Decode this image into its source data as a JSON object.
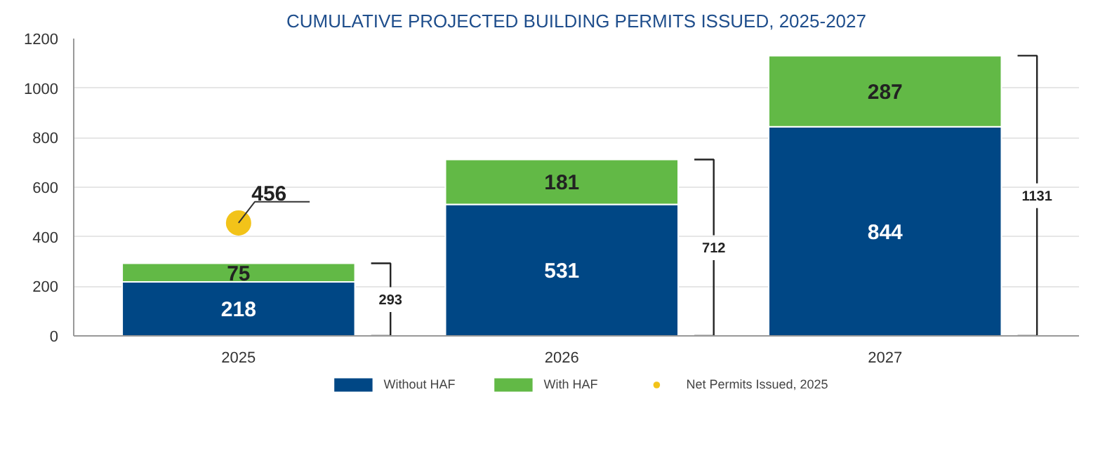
{
  "chart_data": {
    "type": "bar",
    "title": "CUMULATIVE PROJECTED BUILDING PERMITS ISSUED, 2025-2027",
    "categories": [
      "2025",
      "2026",
      "2027"
    ],
    "stacked": true,
    "series": [
      {
        "name": "Without HAF",
        "color": "#004785",
        "values": [
          218,
          531,
          844
        ]
      },
      {
        "name": "With HAF",
        "color": "#62b946",
        "values": [
          75,
          181,
          287
        ]
      },
      {
        "name": "Net Permits Issued, 2025",
        "type": "scatter",
        "color": "#f2c319",
        "values": [
          456,
          null,
          null
        ],
        "value_labels": [
          "456",
          null,
          null
        ]
      }
    ],
    "totals": [
      "293",
      "712",
      "1131"
    ],
    "data_labels": true,
    "ylim": [
      0,
      1200
    ],
    "yticks": [
      0,
      200,
      400,
      600,
      800,
      1000,
      1200
    ],
    "grid": "y",
    "legend": "bottom",
    "marker": "circle"
  }
}
